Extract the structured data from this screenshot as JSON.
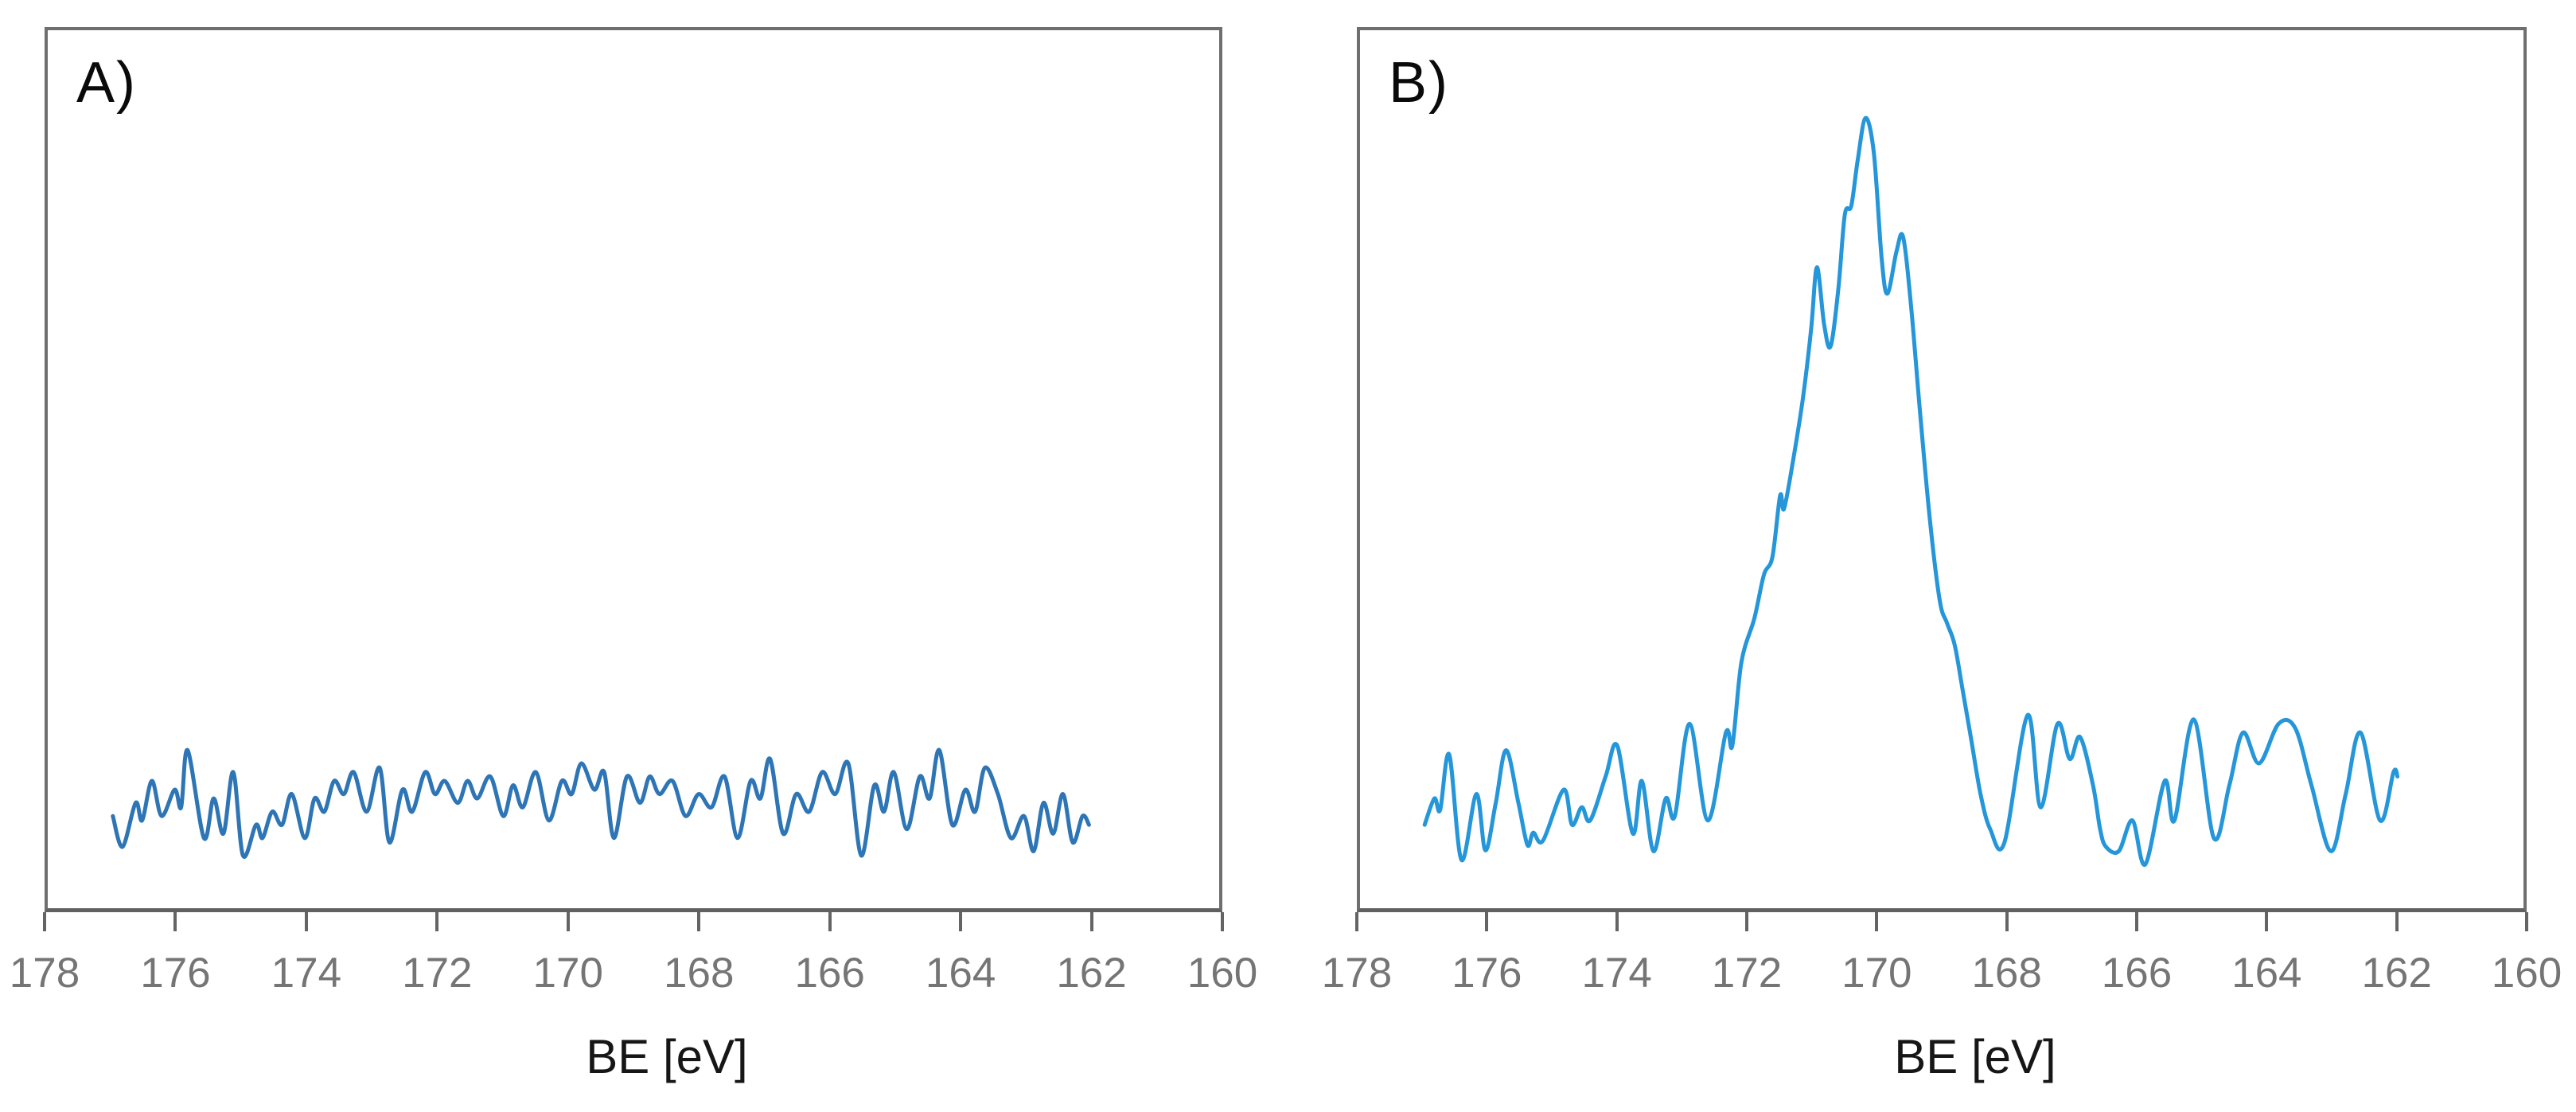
{
  "colors": {
    "background": "#ffffff",
    "axis_line": "#606060",
    "plot_border": "#6f6f6f",
    "tick_label": "#757575",
    "axis_title": "#161616",
    "panel_label": "#0a0a0a",
    "line_panel_a": "#2E75B6",
    "line_panel_b": "#2496D9"
  },
  "chart_data": [
    {
      "panel_label": "A)",
      "type": "line",
      "title": "",
      "xlabel": "BE [eV]",
      "x_axis": {
        "min": 178,
        "max": 160,
        "reversed": true,
        "tick_interval": 2,
        "tick_labels": [
          "178",
          "176",
          "174",
          "172",
          "170",
          "168",
          "166",
          "164",
          "162",
          "160"
        ]
      },
      "y_axis": {
        "visible": false,
        "range": [
          0,
          1
        ],
        "units": "intensity (a.u., fraction of plot height)"
      },
      "grid": false,
      "legend": false,
      "line_color": "#2E75B6",
      "points": [
        [
          177.0,
          0.105
        ],
        [
          176.85,
          0.07
        ],
        [
          176.65,
          0.12
        ],
        [
          176.55,
          0.1
        ],
        [
          176.4,
          0.145
        ],
        [
          176.25,
          0.105
        ],
        [
          176.05,
          0.135
        ],
        [
          175.95,
          0.115
        ],
        [
          175.85,
          0.18
        ],
        [
          175.6,
          0.08
        ],
        [
          175.45,
          0.125
        ],
        [
          175.3,
          0.085
        ],
        [
          175.15,
          0.155
        ],
        [
          175.0,
          0.06
        ],
        [
          174.8,
          0.095
        ],
        [
          174.7,
          0.08
        ],
        [
          174.55,
          0.11
        ],
        [
          174.4,
          0.095
        ],
        [
          174.25,
          0.13
        ],
        [
          174.05,
          0.08
        ],
        [
          173.9,
          0.125
        ],
        [
          173.75,
          0.11
        ],
        [
          173.6,
          0.145
        ],
        [
          173.45,
          0.13
        ],
        [
          173.3,
          0.155
        ],
        [
          173.1,
          0.11
        ],
        [
          172.9,
          0.16
        ],
        [
          172.75,
          0.075
        ],
        [
          172.55,
          0.135
        ],
        [
          172.4,
          0.11
        ],
        [
          172.2,
          0.155
        ],
        [
          172.05,
          0.13
        ],
        [
          171.9,
          0.145
        ],
        [
          171.7,
          0.12
        ],
        [
          171.55,
          0.145
        ],
        [
          171.4,
          0.125
        ],
        [
          171.2,
          0.15
        ],
        [
          171.0,
          0.105
        ],
        [
          170.85,
          0.14
        ],
        [
          170.7,
          0.115
        ],
        [
          170.5,
          0.155
        ],
        [
          170.3,
          0.1
        ],
        [
          170.1,
          0.145
        ],
        [
          169.95,
          0.13
        ],
        [
          169.8,
          0.165
        ],
        [
          169.6,
          0.135
        ],
        [
          169.45,
          0.155
        ],
        [
          169.3,
          0.08
        ],
        [
          169.1,
          0.15
        ],
        [
          168.9,
          0.12
        ],
        [
          168.75,
          0.15
        ],
        [
          168.6,
          0.13
        ],
        [
          168.4,
          0.145
        ],
        [
          168.2,
          0.105
        ],
        [
          168.0,
          0.13
        ],
        [
          167.8,
          0.115
        ],
        [
          167.6,
          0.15
        ],
        [
          167.4,
          0.08
        ],
        [
          167.2,
          0.145
        ],
        [
          167.05,
          0.125
        ],
        [
          166.9,
          0.17
        ],
        [
          166.7,
          0.085
        ],
        [
          166.5,
          0.13
        ],
        [
          166.3,
          0.11
        ],
        [
          166.1,
          0.155
        ],
        [
          165.9,
          0.13
        ],
        [
          165.7,
          0.165
        ],
        [
          165.5,
          0.06
        ],
        [
          165.3,
          0.14
        ],
        [
          165.15,
          0.11
        ],
        [
          165.0,
          0.155
        ],
        [
          164.8,
          0.09
        ],
        [
          164.6,
          0.15
        ],
        [
          164.45,
          0.125
        ],
        [
          164.3,
          0.18
        ],
        [
          164.1,
          0.095
        ],
        [
          163.9,
          0.135
        ],
        [
          163.75,
          0.11
        ],
        [
          163.6,
          0.16
        ],
        [
          163.4,
          0.13
        ],
        [
          163.2,
          0.08
        ],
        [
          163.0,
          0.105
        ],
        [
          162.85,
          0.065
        ],
        [
          162.7,
          0.12
        ],
        [
          162.55,
          0.085
        ],
        [
          162.4,
          0.13
        ],
        [
          162.25,
          0.075
        ],
        [
          162.1,
          0.105
        ],
        [
          162.0,
          0.095
        ]
      ]
    },
    {
      "panel_label": "B)",
      "type": "line",
      "title": "",
      "xlabel": "BE [eV]",
      "x_axis": {
        "min": 178,
        "max": 160,
        "reversed": true,
        "tick_interval": 2,
        "tick_labels": [
          "178",
          "176",
          "174",
          "172",
          "170",
          "168",
          "166",
          "164",
          "162",
          "160"
        ]
      },
      "y_axis": {
        "visible": false,
        "range": [
          0,
          1
        ],
        "units": "intensity (a.u., fraction of plot height)"
      },
      "grid": false,
      "legend": false,
      "line_color": "#2496D9",
      "peak_center_ev": 170.2,
      "points": [
        [
          177.0,
          0.095
        ],
        [
          176.85,
          0.125
        ],
        [
          176.76,
          0.112
        ],
        [
          176.62,
          0.175
        ],
        [
          176.43,
          0.055
        ],
        [
          176.2,
          0.13
        ],
        [
          176.06,
          0.066
        ],
        [
          175.9,
          0.12
        ],
        [
          175.74,
          0.18
        ],
        [
          175.55,
          0.12
        ],
        [
          175.41,
          0.072
        ],
        [
          175.32,
          0.086
        ],
        [
          175.17,
          0.077
        ],
        [
          174.85,
          0.135
        ],
        [
          174.72,
          0.095
        ],
        [
          174.57,
          0.115
        ],
        [
          174.44,
          0.1
        ],
        [
          174.2,
          0.15
        ],
        [
          174.02,
          0.185
        ],
        [
          173.78,
          0.085
        ],
        [
          173.64,
          0.145
        ],
        [
          173.46,
          0.065
        ],
        [
          173.27,
          0.125
        ],
        [
          173.13,
          0.105
        ],
        [
          172.9,
          0.21
        ],
        [
          172.62,
          0.1
        ],
        [
          172.34,
          0.2
        ],
        [
          172.24,
          0.185
        ],
        [
          172.1,
          0.28
        ],
        [
          171.9,
          0.33
        ],
        [
          171.75,
          0.38
        ],
        [
          171.62,
          0.4
        ],
        [
          171.5,
          0.47
        ],
        [
          171.44,
          0.455
        ],
        [
          171.3,
          0.51
        ],
        [
          171.15,
          0.58
        ],
        [
          171.02,
          0.66
        ],
        [
          170.93,
          0.73
        ],
        [
          170.82,
          0.665
        ],
        [
          170.72,
          0.64
        ],
        [
          170.6,
          0.705
        ],
        [
          170.5,
          0.79
        ],
        [
          170.4,
          0.8
        ],
        [
          170.3,
          0.852
        ],
        [
          170.18,
          0.9
        ],
        [
          170.05,
          0.86
        ],
        [
          169.93,
          0.74
        ],
        [
          169.84,
          0.7
        ],
        [
          169.7,
          0.748
        ],
        [
          169.6,
          0.765
        ],
        [
          169.48,
          0.69
        ],
        [
          169.33,
          0.56
        ],
        [
          169.18,
          0.44
        ],
        [
          169.03,
          0.35
        ],
        [
          168.92,
          0.325
        ],
        [
          168.8,
          0.3
        ],
        [
          168.68,
          0.25
        ],
        [
          168.55,
          0.195
        ],
        [
          168.4,
          0.13
        ],
        [
          168.25,
          0.09
        ],
        [
          168.03,
          0.075
        ],
        [
          167.67,
          0.22
        ],
        [
          167.47,
          0.115
        ],
        [
          167.21,
          0.21
        ],
        [
          167.02,
          0.17
        ],
        [
          166.86,
          0.195
        ],
        [
          166.66,
          0.14
        ],
        [
          166.55,
          0.09
        ],
        [
          166.46,
          0.07
        ],
        [
          166.26,
          0.065
        ],
        [
          166.05,
          0.1
        ],
        [
          165.85,
          0.05
        ],
        [
          165.55,
          0.145
        ],
        [
          165.4,
          0.1
        ],
        [
          165.1,
          0.215
        ],
        [
          164.79,
          0.08
        ],
        [
          164.55,
          0.14
        ],
        [
          164.34,
          0.2
        ],
        [
          164.09,
          0.165
        ],
        [
          163.79,
          0.21
        ],
        [
          163.53,
          0.205
        ],
        [
          163.28,
          0.14
        ],
        [
          162.98,
          0.065
        ],
        [
          162.75,
          0.13
        ],
        [
          162.52,
          0.2
        ],
        [
          162.22,
          0.1
        ],
        [
          162.01,
          0.155
        ],
        [
          161.95,
          0.15
        ]
      ]
    }
  ]
}
